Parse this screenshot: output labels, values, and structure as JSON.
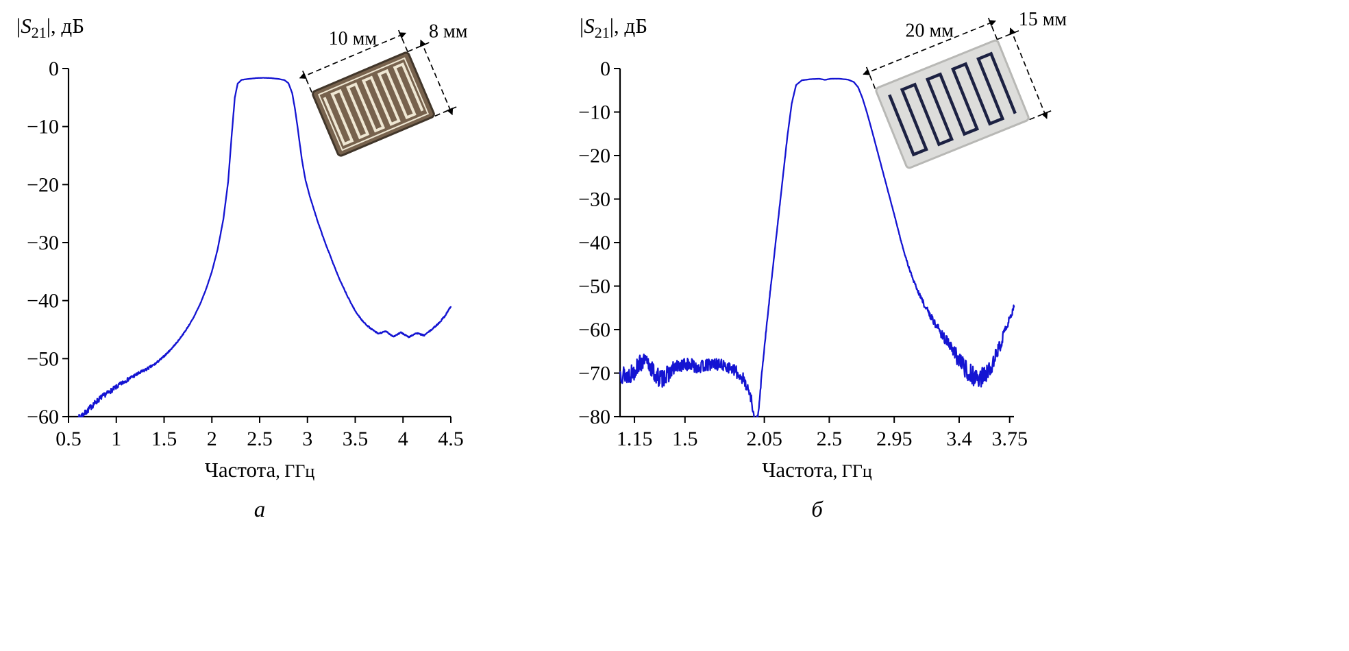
{
  "figure": {
    "background": "#ffffff",
    "axis_color": "#000000",
    "curve_color": "#1414d2"
  },
  "chart_data": [
    {
      "id": "a",
      "type": "line",
      "panel_label": "а",
      "ylabel": {
        "open": "|",
        "symbol": "S",
        "sub": "21",
        "close": "|, дБ"
      },
      "xlabel": "Частота",
      "xlabel_unit": ", ГГц",
      "xlim": [
        0.5,
        4.5
      ],
      "ylim": [
        -60,
        0
      ],
      "grid": false,
      "legend": null,
      "xticks": [
        0.5,
        1,
        1.5,
        2,
        2.5,
        3,
        3.5,
        4,
        4.5
      ],
      "xtick_labels": [
        "0.5",
        "1",
        "1.5",
        "2",
        "2.5",
        "3",
        "3.5",
        "4",
        "4.5"
      ],
      "yticks": [
        0,
        -10,
        -20,
        -30,
        -40,
        -50,
        -60
      ],
      "ytick_labels": [
        "0",
        "−10",
        "−20",
        "−30",
        "−40",
        "−50",
        "−60"
      ],
      "line_color": "#1414d2",
      "series": [
        {
          "name": "S21",
          "noise_seed": 7,
          "points": [
            [
              0.6,
              -60.2,
              0.45
            ],
            [
              0.68,
              -59.3,
              0.5
            ],
            [
              0.76,
              -57.9,
              0.5
            ],
            [
              0.84,
              -56.7,
              0.45
            ],
            [
              0.92,
              -55.8,
              0.4
            ],
            [
              1.0,
              -54.9,
              0.4
            ],
            [
              1.08,
              -54.0,
              0.35
            ],
            [
              1.16,
              -53.2,
              0.3
            ],
            [
              1.24,
              -52.5,
              0.3
            ],
            [
              1.32,
              -51.8,
              0.25
            ],
            [
              1.4,
              -51.0,
              0.2
            ],
            [
              1.48,
              -49.9,
              0.15
            ],
            [
              1.56,
              -48.6,
              0.12
            ],
            [
              1.64,
              -47.1,
              0.1
            ],
            [
              1.72,
              -45.3,
              0.1
            ],
            [
              1.8,
              -43.2,
              0.08
            ],
            [
              1.88,
              -40.5,
              0.06
            ],
            [
              1.94,
              -38.0,
              0.05
            ],
            [
              2.0,
              -35.0,
              0.04
            ],
            [
              2.06,
              -31.2,
              0.03
            ],
            [
              2.12,
              -26.0,
              0.02
            ],
            [
              2.17,
              -19.5,
              0.02
            ],
            [
              2.21,
              -11.0,
              0.01
            ],
            [
              2.24,
              -5.0,
              0.01
            ],
            [
              2.27,
              -2.6,
              0.01
            ],
            [
              2.31,
              -1.95,
              0.01
            ],
            [
              2.38,
              -1.8,
              0.01
            ],
            [
              2.46,
              -1.65,
              0.01
            ],
            [
              2.54,
              -1.6,
              0.01
            ],
            [
              2.62,
              -1.65,
              0.01
            ],
            [
              2.7,
              -1.8,
              0.01
            ],
            [
              2.76,
              -2.0,
              0.01
            ],
            [
              2.8,
              -2.5,
              0.01
            ],
            [
              2.84,
              -4.2,
              0.01
            ],
            [
              2.87,
              -7.0,
              0.02
            ],
            [
              2.9,
              -10.5,
              0.02
            ],
            [
              2.94,
              -15.5,
              0.03
            ],
            [
              2.98,
              -19.3,
              0.03
            ],
            [
              3.03,
              -22.3,
              0.04
            ],
            [
              3.1,
              -26.0,
              0.05
            ],
            [
              3.18,
              -29.8,
              0.06
            ],
            [
              3.26,
              -33.2,
              0.07
            ],
            [
              3.34,
              -36.5,
              0.08
            ],
            [
              3.42,
              -39.3,
              0.08
            ],
            [
              3.5,
              -41.8,
              0.09
            ],
            [
              3.58,
              -43.6,
              0.1
            ],
            [
              3.66,
              -44.8,
              0.1
            ],
            [
              3.74,
              -45.7,
              0.1
            ],
            [
              3.82,
              -45.3,
              0.1
            ],
            [
              3.9,
              -46.2,
              0.1
            ],
            [
              3.98,
              -45.5,
              0.1
            ],
            [
              4.06,
              -46.3,
              0.1
            ],
            [
              4.14,
              -45.6,
              0.1
            ],
            [
              4.22,
              -46.0,
              0.1
            ],
            [
              4.3,
              -45.0,
              0.1
            ],
            [
              4.38,
              -43.8,
              0.12
            ],
            [
              4.44,
              -42.6,
              0.15
            ],
            [
              4.5,
              -41.0,
              0.15
            ]
          ]
        }
      ],
      "inset": {
        "substrate_color": "#77624d",
        "substrate_edge": "#41362a",
        "pattern_color": "#efe7d3",
        "width_label": "10 мм",
        "height_label": "8 мм"
      }
    },
    {
      "id": "b",
      "type": "line",
      "panel_label": "б",
      "ylabel": {
        "open": "|",
        "symbol": "S",
        "sub": "21",
        "close": "|, дБ"
      },
      "xlabel": "Частота",
      "xlabel_unit": ", ГГц",
      "xlim": [
        1.05,
        3.78
      ],
      "ylim": [
        -80,
        0
      ],
      "grid": false,
      "legend": null,
      "xticks": [
        1.15,
        1.5,
        2.05,
        2.5,
        2.95,
        3.4,
        3.75
      ],
      "xtick_labels": [
        "1.15",
        "1.5",
        "2.05",
        "2.5",
        "2.95",
        "3.4",
        "3.75"
      ],
      "yticks": [
        0,
        -10,
        -20,
        -30,
        -40,
        -50,
        -60,
        -70,
        -80
      ],
      "ytick_labels": [
        "0",
        "−10",
        "−20",
        "−30",
        "−40",
        "−50",
        "−60",
        "−70",
        "−80"
      ],
      "line_color": "#1414d2",
      "series": [
        {
          "name": "S21",
          "noise_seed": 13,
          "points": [
            [
              1.05,
              -70.0,
              2.2
            ],
            [
              1.1,
              -70.5,
              2.2
            ],
            [
              1.14,
              -69.8,
              2.2
            ],
            [
              1.18,
              -68.0,
              2.0
            ],
            [
              1.22,
              -67.3,
              1.8
            ],
            [
              1.26,
              -68.5,
              2.0
            ],
            [
              1.3,
              -70.8,
              2.2
            ],
            [
              1.34,
              -71.2,
              2.2
            ],
            [
              1.38,
              -70.3,
              2.0
            ],
            [
              1.42,
              -69.0,
              1.7
            ],
            [
              1.46,
              -68.3,
              1.5
            ],
            [
              1.5,
              -68.0,
              1.5
            ],
            [
              1.55,
              -68.2,
              1.5
            ],
            [
              1.6,
              -68.6,
              1.5
            ],
            [
              1.65,
              -68.2,
              1.4
            ],
            [
              1.7,
              -67.9,
              1.4
            ],
            [
              1.75,
              -68.1,
              1.3
            ],
            [
              1.8,
              -68.6,
              1.3
            ],
            [
              1.85,
              -69.6,
              1.4
            ],
            [
              1.9,
              -71.2,
              1.5
            ],
            [
              1.93,
              -73.0,
              1.2
            ],
            [
              1.96,
              -76.0,
              1.0
            ],
            [
              1.985,
              -81.5,
              0.6
            ],
            [
              2.01,
              -79.0,
              0.5
            ],
            [
              2.03,
              -71.0,
              0.4
            ],
            [
              2.06,
              -61.0,
              0.3
            ],
            [
              2.09,
              -51.5,
              0.2
            ],
            [
              2.12,
              -42.5,
              0.15
            ],
            [
              2.15,
              -33.5,
              0.1
            ],
            [
              2.18,
              -24.5,
              0.08
            ],
            [
              2.21,
              -15.5,
              0.05
            ],
            [
              2.24,
              -8.0,
              0.03
            ],
            [
              2.27,
              -3.8,
              0.02
            ],
            [
              2.31,
              -2.7,
              0.01
            ],
            [
              2.37,
              -2.45,
              0.01
            ],
            [
              2.43,
              -2.35,
              0.01
            ],
            [
              2.47,
              -2.6,
              0.01
            ],
            [
              2.51,
              -2.35,
              0.01
            ],
            [
              2.57,
              -2.35,
              0.01
            ],
            [
              2.63,
              -2.55,
              0.01
            ],
            [
              2.67,
              -3.1,
              0.01
            ],
            [
              2.7,
              -4.3,
              0.01
            ],
            [
              2.73,
              -6.8,
              0.02
            ],
            [
              2.76,
              -10.0,
              0.02
            ],
            [
              2.8,
              -14.8,
              0.03
            ],
            [
              2.84,
              -19.8,
              0.04
            ],
            [
              2.88,
              -24.8,
              0.05
            ],
            [
              2.92,
              -29.8,
              0.06
            ],
            [
              2.96,
              -34.8,
              0.08
            ],
            [
              3.0,
              -40.0,
              0.15
            ],
            [
              3.04,
              -44.6,
              0.25
            ],
            [
              3.08,
              -48.4,
              0.35
            ],
            [
              3.12,
              -51.6,
              0.45
            ],
            [
              3.16,
              -54.4,
              0.6
            ],
            [
              3.2,
              -56.8,
              0.8
            ],
            [
              3.25,
              -59.5,
              1.0
            ],
            [
              3.3,
              -62.0,
              1.2
            ],
            [
              3.35,
              -64.5,
              1.5
            ],
            [
              3.4,
              -67.0,
              1.9
            ],
            [
              3.45,
              -69.2,
              2.2
            ],
            [
              3.5,
              -70.6,
              2.3
            ],
            [
              3.55,
              -71.2,
              2.3
            ],
            [
              3.59,
              -70.2,
              2.0
            ],
            [
              3.63,
              -67.8,
              1.8
            ],
            [
              3.67,
              -64.8,
              1.5
            ],
            [
              3.71,
              -61.2,
              1.2
            ],
            [
              3.75,
              -57.5,
              1.0
            ],
            [
              3.78,
              -55.0,
              0.8
            ]
          ]
        }
      ],
      "inset": {
        "substrate_color": "#dddddb",
        "substrate_edge": "#b8b8b5",
        "pattern_color": "#1c2142",
        "width_label": "20 мм",
        "height_label": "15 мм"
      }
    }
  ]
}
